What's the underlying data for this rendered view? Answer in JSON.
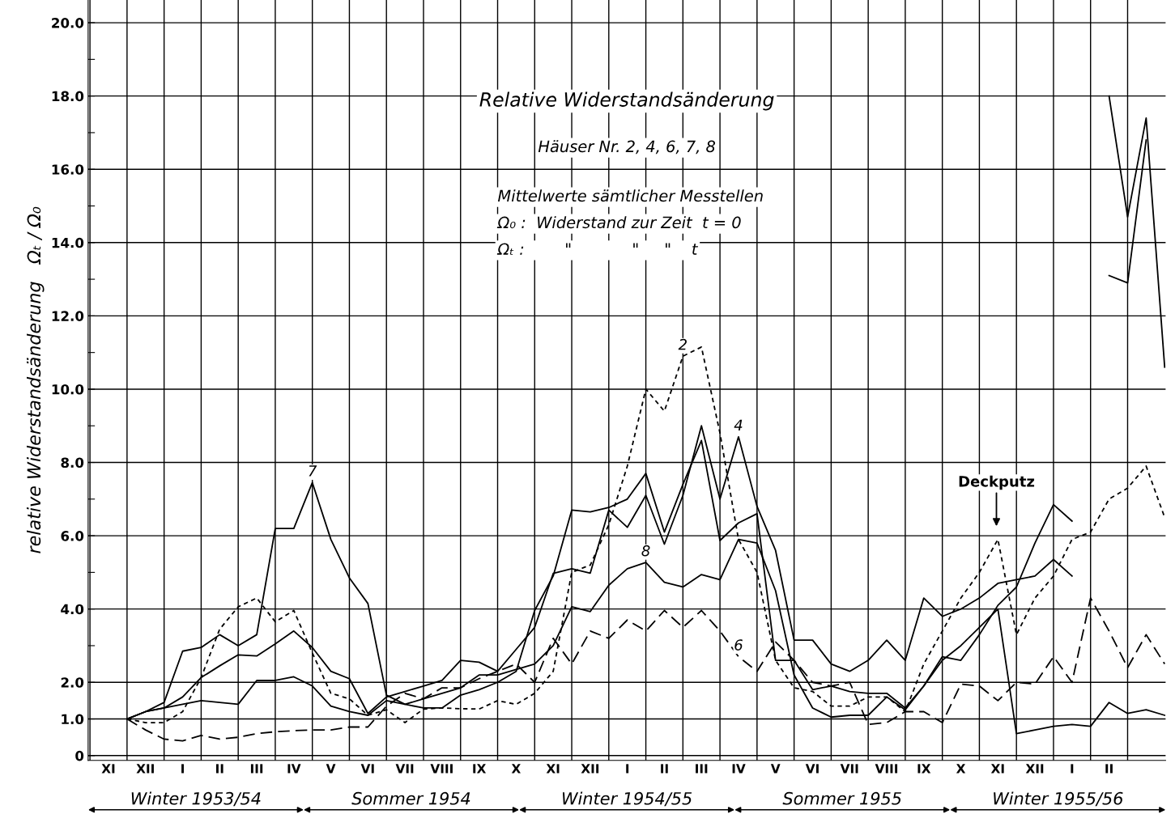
{
  "chart_data": {
    "type": "line",
    "title": "Relative Widerstandsänderung",
    "subtitle": "Häuser Nr. 2, 4, 6, 7, 8",
    "ylabel": "relative Widerstandsänderung   Ωₜ / Ω₀",
    "annotations": [
      "Mittelwerte sämtlicher Messtellen",
      "Ω₀ :  Widerstand zur Zeit  t = 0",
      "Ωₜ :        \"            \"     \"    t",
      "Deckputz",
      "Winter 1953/54",
      "Sommer 1954",
      "Winter 1954/55",
      "Sommer 1955",
      "Winter 1955/56"
    ],
    "categories": [
      null,
      "XI",
      null,
      "XII",
      null,
      "I",
      null,
      "II",
      null,
      "III",
      null,
      "IV",
      null,
      "V",
      null,
      "VI",
      null,
      "VII",
      null,
      "VIII",
      null,
      "IX",
      null,
      "X",
      null,
      "XI",
      null,
      "XII",
      null,
      "I",
      null,
      "II",
      null,
      "III",
      null,
      "IV",
      null,
      "V",
      null,
      "VI",
      null,
      "VII",
      null,
      "VIII",
      null,
      "IX",
      null,
      "X",
      null,
      "XI",
      null,
      "XII",
      null,
      "I",
      null,
      "II",
      null,
      null,
      null
    ],
    "series": [
      {
        "name": "2",
        "color": "#000000",
        "line_style": "dotted",
        "values": [
          null,
          null,
          1.0,
          0.9,
          0.9,
          1.2,
          2.13,
          3.45,
          4.06,
          4.3,
          3.65,
          3.96,
          2.8,
          1.7,
          1.55,
          1.1,
          1.25,
          0.9,
          1.27,
          1.3,
          1.28,
          1.27,
          1.5,
          1.4,
          1.7,
          2.3,
          5.0,
          5.2,
          6.3,
          7.9,
          10.0,
          9.4,
          10.9,
          11.15,
          8.8,
          5.9,
          5.0,
          2.6,
          1.85,
          1.75,
          1.35,
          1.35,
          1.6,
          1.6,
          1.2,
          2.5,
          3.4,
          4.3,
          5.0,
          5.9,
          3.3,
          4.3,
          4.9,
          5.9,
          6.1,
          7.0,
          7.3,
          7.9,
          6.5
        ]
      },
      {
        "name": "4",
        "color": "#000000",
        "line_style": "solid",
        "values": [
          null,
          null,
          1.0,
          1.2,
          1.3,
          1.6,
          2.13,
          2.45,
          2.75,
          2.72,
          3.05,
          3.4,
          2.95,
          2.3,
          2.1,
          1.15,
          1.6,
          1.75,
          1.9,
          2.05,
          2.6,
          2.55,
          2.3,
          2.9,
          3.5,
          4.97,
          5.1,
          4.98,
          6.7,
          6.23,
          7.1,
          5.77,
          7.1,
          9.0,
          7.0,
          8.7,
          6.8,
          5.6,
          3.15,
          3.15,
          2.5,
          2.3,
          2.6,
          3.15,
          2.6,
          4.3,
          3.8,
          4.0,
          4.3,
          4.7,
          4.8,
          4.9,
          5.35,
          4.9,
          null,
          13.1,
          12.9,
          16.8,
          null
        ]
      },
      {
        "name": "6",
        "color": "#000000",
        "line_style": "dashed",
        "values": [
          null,
          null,
          1.0,
          0.7,
          0.45,
          0.4,
          0.55,
          0.45,
          0.5,
          0.6,
          0.65,
          0.68,
          0.7,
          0.7,
          0.78,
          0.78,
          1.35,
          1.7,
          1.55,
          1.85,
          1.85,
          2.1,
          2.3,
          2.5,
          2.0,
          3.2,
          2.5,
          3.4,
          3.2,
          3.7,
          3.4,
          3.96,
          3.5,
          3.96,
          3.4,
          2.7,
          2.3,
          3.1,
          2.6,
          2.0,
          1.9,
          2.0,
          0.85,
          0.9,
          1.2,
          1.2,
          0.9,
          1.95,
          1.9,
          1.5,
          2.0,
          1.95,
          2.7,
          2.0,
          4.3,
          3.4,
          2.4,
          3.3,
          2.5
        ]
      },
      {
        "name": "7",
        "color": "#000000",
        "line_style": "solid",
        "values": [
          null,
          null,
          1.0,
          1.2,
          1.45,
          2.85,
          2.95,
          3.3,
          3.0,
          3.3,
          6.2,
          6.2,
          7.45,
          5.9,
          4.85,
          4.15,
          1.65,
          1.4,
          1.3,
          1.3,
          1.65,
          1.8,
          2.0,
          2.3,
          3.96,
          4.9,
          6.7,
          6.65,
          6.77,
          7.0,
          7.7,
          6.1,
          7.4,
          8.6,
          5.87,
          6.35,
          6.6,
          2.6,
          2.6,
          1.8,
          1.9,
          1.75,
          1.7,
          1.7,
          1.3,
          1.9,
          2.7,
          2.6,
          3.3,
          4.1,
          4.6,
          5.8,
          6.85,
          6.4,
          null,
          18.0,
          14.7,
          17.4,
          10.6
        ]
      },
      {
        "name": "8",
        "color": "#000000",
        "line_style": "solid",
        "values": [
          null,
          null,
          1.0,
          1.2,
          1.3,
          1.4,
          1.5,
          1.45,
          1.4,
          2.05,
          2.05,
          2.15,
          1.9,
          1.35,
          1.2,
          1.1,
          1.5,
          1.4,
          1.55,
          1.7,
          1.85,
          2.2,
          2.2,
          2.35,
          2.5,
          3.0,
          4.06,
          3.93,
          4.65,
          5.1,
          5.27,
          4.73,
          4.6,
          4.94,
          4.8,
          5.9,
          5.8,
          4.5,
          2.2,
          1.3,
          1.05,
          1.1,
          1.1,
          1.6,
          1.25,
          1.9,
          2.6,
          3.0,
          3.5,
          4.0,
          0.6,
          0.7,
          0.8,
          0.85,
          0.8,
          1.45,
          1.15,
          1.25,
          1.1
        ]
      }
    ],
    "ylim": [
      -0.13,
      20.62
    ],
    "yticks": [
      0,
      {
        "value": 1,
        "label": "1.0"
      },
      {
        "value": 2,
        "label": "2.0"
      },
      {
        "value": 3,
        "label": null
      },
      {
        "value": 4,
        "label": "4.0"
      },
      {
        "value": 5,
        "label": null
      },
      {
        "value": 6,
        "label": "6.0"
      },
      {
        "value": 7,
        "label": null
      },
      {
        "value": 8,
        "label": "8.0"
      },
      {
        "value": 9,
        "label": null
      },
      {
        "value": 10,
        "label": "10.0"
      },
      {
        "value": 11,
        "label": null
      },
      {
        "value": 12,
        "label": "12.0"
      },
      {
        "value": 13,
        "label": null
      },
      {
        "value": 14,
        "label": "14.0"
      },
      {
        "value": 15,
        "label": null
      },
      {
        "value": 16,
        "label": "16.0"
      },
      {
        "value": 17,
        "label": null
      },
      {
        "value": 18,
        "label": "18.0"
      },
      {
        "value": 19,
        "label": null
      },
      {
        "value": 20,
        "label": "20.0"
      }
    ],
    "grid": true,
    "legend": false,
    "marker": "none"
  }
}
